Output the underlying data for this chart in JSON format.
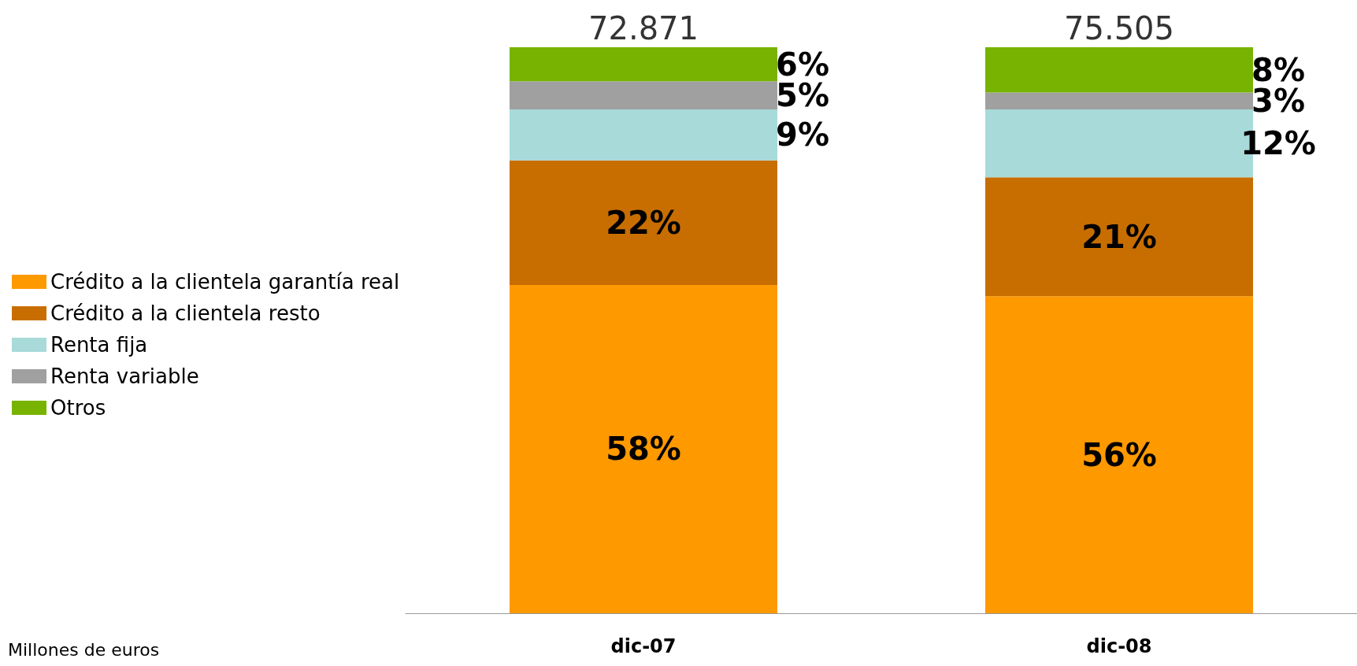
{
  "chart_data": {
    "type": "bar",
    "stacked": true,
    "categories": [
      "dic-07",
      "dic-08"
    ],
    "series": [
      {
        "name": "Crédito a la clientela garantía real",
        "color": "#ff9900",
        "values": [
          58,
          56
        ],
        "value_labels": [
          "58%",
          "56%"
        ]
      },
      {
        "name": "Crédito a la clientela resto",
        "color": "#c86e00",
        "values": [
          22,
          21
        ],
        "value_labels": [
          "22%",
          "21%"
        ]
      },
      {
        "name": "Renta fija",
        "color": "#a8dada",
        "values": [
          9,
          12
        ],
        "value_labels": [
          "9%",
          "12%"
        ]
      },
      {
        "name": "Renta variable",
        "color": "#a0a0a0",
        "values": [
          5,
          3
        ],
        "value_labels": [
          "5%",
          "3%"
        ]
      },
      {
        "name": "Otros",
        "color": "#77b300",
        "values": [
          6,
          8
        ],
        "value_labels": [
          "6%",
          "8%"
        ]
      }
    ],
    "legend": "left",
    "annotations": [
      "Millones de euros",
      {
        "text": "72.871",
        "x": "dic-07",
        "y": 100
      },
      {
        "text": "75.505",
        "x": "dic-08",
        "y": 100
      }
    ]
  }
}
